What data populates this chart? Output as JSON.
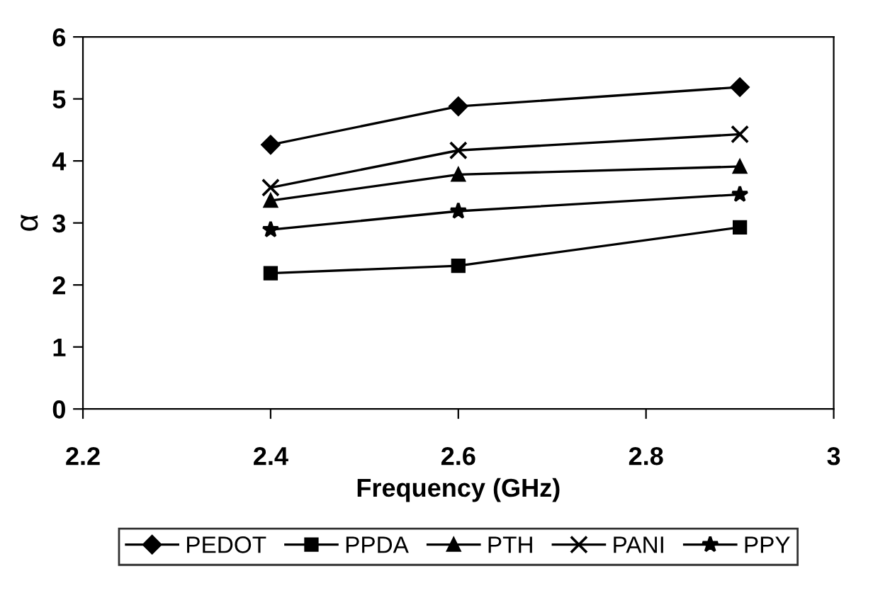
{
  "chart_data": {
    "type": "line",
    "xlabel": "Frequency (GHz)",
    "ylabel": "α",
    "xlim": [
      2.2,
      3
    ],
    "xticks": [
      2.2,
      2.4,
      2.6,
      2.8,
      3
    ],
    "ylim": [
      0,
      6
    ],
    "yticks": [
      0,
      1,
      2,
      3,
      4,
      5,
      6
    ],
    "grid": false,
    "legend": "bottom",
    "line_style": "solid",
    "series": [
      {
        "name": "PEDOT",
        "color": "#000000",
        "marker": "diamond",
        "x": [
          2.4,
          2.6,
          2.9
        ],
        "values": [
          4.26,
          4.88,
          5.19
        ]
      },
      {
        "name": "PPDA",
        "color": "#000000",
        "marker": "square",
        "x": [
          2.4,
          2.6,
          2.9
        ],
        "values": [
          2.19,
          2.31,
          2.93
        ]
      },
      {
        "name": "PTH",
        "color": "#000000",
        "marker": "triangle",
        "x": [
          2.4,
          2.6,
          2.9
        ],
        "values": [
          3.36,
          3.78,
          3.91
        ]
      },
      {
        "name": "PANI",
        "color": "#000000",
        "marker": "cross",
        "x": [
          2.4,
          2.6,
          2.9
        ],
        "values": [
          3.57,
          4.17,
          4.43
        ]
      },
      {
        "name": "PPY",
        "color": "#000000",
        "marker": "star",
        "x": [
          2.4,
          2.6,
          2.9
        ],
        "values": [
          2.89,
          3.19,
          3.46
        ]
      }
    ]
  }
}
